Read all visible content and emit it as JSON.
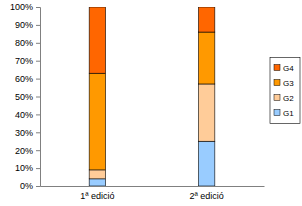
{
  "chart_data": {
    "type": "bar",
    "stacked": true,
    "legend": "right",
    "grid": false,
    "categories": [
      "1ª edició",
      "2ª edició"
    ],
    "ylim": [
      0,
      100
    ],
    "yticks": [
      {
        "value": 0,
        "label": "0%"
      },
      {
        "value": 10,
        "label": "10%"
      },
      {
        "value": 20,
        "label": "20%"
      },
      {
        "value": 30,
        "label": "30%"
      },
      {
        "value": 40,
        "label": "40%"
      },
      {
        "value": 50,
        "label": "50%"
      },
      {
        "value": 60,
        "label": "60%"
      },
      {
        "value": 70,
        "label": "70%"
      },
      {
        "value": 80,
        "label": "80%"
      },
      {
        "value": 90,
        "label": "90%"
      },
      {
        "value": 100,
        "label": "100%"
      }
    ],
    "series": [
      {
        "name": "G1",
        "color": "#99ccff",
        "values": [
          4,
          25
        ]
      },
      {
        "name": "G2",
        "color": "#ffcc99",
        "values": [
          5,
          32
        ]
      },
      {
        "name": "G3",
        "color": "#ff9900",
        "values": [
          54,
          29
        ]
      },
      {
        "name": "G4",
        "color": "#ff6600",
        "values": [
          37,
          14
        ]
      }
    ]
  }
}
